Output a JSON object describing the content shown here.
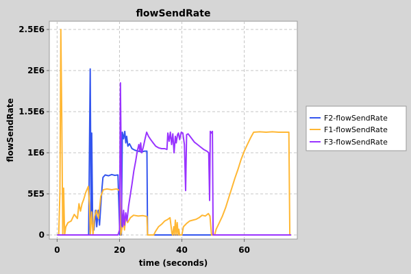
{
  "chart_data": {
    "type": "line",
    "title": "flowSendRate",
    "xlabel": "time (seconds)",
    "ylabel": "flowSendRate",
    "xlim": [
      -2.5,
      77
    ],
    "ylim": [
      -50000,
      2600000
    ],
    "xticks": [
      0,
      20,
      40,
      60
    ],
    "xtick_labels": [
      "0",
      "20",
      "40",
      "60"
    ],
    "yticks": [
      0,
      500000,
      1000000,
      1500000,
      2000000,
      2500000
    ],
    "ytick_labels": [
      "0",
      "5E5",
      "1E6",
      "1.5E6",
      "2E6",
      "2.5E6"
    ],
    "grid": true,
    "legend_position": "right",
    "colors": {
      "page_background": "#d6d6d6",
      "plot_background": "#ffffff",
      "grid": "#c4c4c4",
      "text": "#000000"
    },
    "series": [
      {
        "name": "F2-flowSendRate",
        "color": "#3355ee",
        "points": [
          [
            0,
            0
          ],
          [
            10.1,
            0
          ],
          [
            10.6,
            2020000
          ],
          [
            10.9,
            150000
          ],
          [
            11.1,
            1240000
          ],
          [
            11.4,
            100000
          ],
          [
            11.8,
            60000
          ],
          [
            12.3,
            300000
          ],
          [
            12.7,
            100000
          ],
          [
            13.2,
            300000
          ],
          [
            13.6,
            120000
          ],
          [
            14.1,
            420000
          ],
          [
            14.4,
            580000
          ],
          [
            14.7,
            700000
          ],
          [
            15.4,
            730000
          ],
          [
            16.5,
            720000
          ],
          [
            17.5,
            735000
          ],
          [
            18.5,
            725000
          ],
          [
            19.5,
            730000
          ],
          [
            20.1,
            0
          ],
          [
            20.6,
            0
          ],
          [
            20.9,
            1250000
          ],
          [
            21.3,
            1170000
          ],
          [
            21.7,
            1260000
          ],
          [
            22.0,
            1120000
          ],
          [
            22.3,
            1200000
          ],
          [
            22.7,
            1080000
          ],
          [
            23.2,
            1110000
          ],
          [
            24.0,
            1050000
          ],
          [
            25.0,
            1030000
          ],
          [
            26.0,
            1020000
          ],
          [
            27.0,
            1010000
          ],
          [
            28.0,
            1020000
          ],
          [
            28.8,
            1020000
          ],
          [
            29.0,
            0
          ],
          [
            75,
            0
          ]
        ]
      },
      {
        "name": "F1-flowSendRate",
        "color": "#ffb733",
        "points": [
          [
            0,
            0
          ],
          [
            0.5,
            0
          ],
          [
            0.9,
            520000
          ],
          [
            1.2,
            2500000
          ],
          [
            1.5,
            1400000
          ],
          [
            1.8,
            0
          ],
          [
            2.1,
            570000
          ],
          [
            2.4,
            0
          ],
          [
            2.8,
            100000
          ],
          [
            3.5,
            150000
          ],
          [
            4.5,
            170000
          ],
          [
            5.5,
            250000
          ],
          [
            6.5,
            200000
          ],
          [
            7.0,
            380000
          ],
          [
            7.5,
            290000
          ],
          [
            8.0,
            380000
          ],
          [
            8.5,
            430000
          ],
          [
            9.2,
            520000
          ],
          [
            10.0,
            590000
          ],
          [
            10.4,
            350000
          ],
          [
            10.6,
            0
          ],
          [
            11.1,
            280000
          ],
          [
            11.5,
            0
          ],
          [
            12.0,
            220000
          ],
          [
            12.6,
            300000
          ],
          [
            13.3,
            200000
          ],
          [
            14.0,
            470000
          ],
          [
            14.8,
            550000
          ],
          [
            16.0,
            560000
          ],
          [
            17.5,
            550000
          ],
          [
            19.0,
            560000
          ],
          [
            20.1,
            540000
          ],
          [
            20.4,
            0
          ],
          [
            21.3,
            180000
          ],
          [
            21.6,
            60000
          ],
          [
            22.0,
            220000
          ],
          [
            22.6,
            150000
          ],
          [
            23.5,
            210000
          ],
          [
            24.5,
            240000
          ],
          [
            26.0,
            230000
          ],
          [
            27.5,
            235000
          ],
          [
            28.8,
            225000
          ],
          [
            29.0,
            0
          ],
          [
            31.0,
            0
          ],
          [
            31.5,
            40000
          ],
          [
            32.5,
            100000
          ],
          [
            33.5,
            130000
          ],
          [
            34.5,
            170000
          ],
          [
            35.5,
            190000
          ],
          [
            36.2,
            210000
          ],
          [
            36.8,
            20000
          ],
          [
            37.0,
            0
          ],
          [
            37.4,
            100000
          ],
          [
            37.6,
            0
          ],
          [
            37.9,
            180000
          ],
          [
            38.2,
            0
          ],
          [
            38.5,
            150000
          ],
          [
            38.8,
            0
          ],
          [
            39.0,
            70000
          ],
          [
            39.3,
            0
          ],
          [
            40.0,
            0
          ],
          [
            40.5,
            100000
          ],
          [
            41.5,
            140000
          ],
          [
            42.5,
            170000
          ],
          [
            43.5,
            180000
          ],
          [
            44.5,
            190000
          ],
          [
            45.5,
            210000
          ],
          [
            46.5,
            240000
          ],
          [
            47.5,
            230000
          ],
          [
            48.5,
            260000
          ],
          [
            49.0,
            230000
          ],
          [
            49.5,
            0
          ],
          [
            50.5,
            0
          ],
          [
            51.0,
            70000
          ],
          [
            52.0,
            150000
          ],
          [
            53.0,
            230000
          ],
          [
            54.0,
            330000
          ],
          [
            55.0,
            450000
          ],
          [
            56.0,
            570000
          ],
          [
            57.0,
            690000
          ],
          [
            58.0,
            800000
          ],
          [
            59.0,
            920000
          ],
          [
            60.0,
            1020000
          ],
          [
            61.0,
            1100000
          ],
          [
            62.0,
            1180000
          ],
          [
            63.0,
            1250000
          ],
          [
            65.0,
            1255000
          ],
          [
            67.0,
            1250000
          ],
          [
            69.0,
            1255000
          ],
          [
            71.0,
            1250000
          ],
          [
            73.0,
            1250000
          ],
          [
            74.3,
            1250000
          ],
          [
            74.6,
            0
          ],
          [
            75,
            0
          ]
        ]
      },
      {
        "name": "F3-flowSendRate",
        "color": "#9933ff",
        "points": [
          [
            0,
            0
          ],
          [
            19.5,
            0
          ],
          [
            20.0,
            60000
          ],
          [
            20.3,
            1850000
          ],
          [
            20.7,
            300000
          ],
          [
            21.0,
            100000
          ],
          [
            21.3,
            300000
          ],
          [
            21.6,
            120000
          ],
          [
            22.0,
            270000
          ],
          [
            22.4,
            170000
          ],
          [
            22.9,
            350000
          ],
          [
            23.4,
            470000
          ],
          [
            24.0,
            620000
          ],
          [
            24.6,
            780000
          ],
          [
            25.2,
            900000
          ],
          [
            25.7,
            1020000
          ],
          [
            26.2,
            1100000
          ],
          [
            26.5,
            1020000
          ],
          [
            26.8,
            1120000
          ],
          [
            27.1,
            1000000
          ],
          [
            27.5,
            1050000
          ],
          [
            27.8,
            1100000
          ],
          [
            28.2,
            1170000
          ],
          [
            28.7,
            1250000
          ],
          [
            29.3,
            1200000
          ],
          [
            30.0,
            1160000
          ],
          [
            30.8,
            1120000
          ],
          [
            31.6,
            1080000
          ],
          [
            32.5,
            1060000
          ],
          [
            33.5,
            1050000
          ],
          [
            34.5,
            1050000
          ],
          [
            35.2,
            1040000
          ],
          [
            35.5,
            1240000
          ],
          [
            35.9,
            1140000
          ],
          [
            36.3,
            1250000
          ],
          [
            36.7,
            1100000
          ],
          [
            37.1,
            1230000
          ],
          [
            37.5,
            1000000
          ],
          [
            37.9,
            1200000
          ],
          [
            38.2,
            1120000
          ],
          [
            38.6,
            1220000
          ],
          [
            38.9,
            1240000
          ],
          [
            39.3,
            1160000
          ],
          [
            39.8,
            1250000
          ],
          [
            40.3,
            1240000
          ],
          [
            40.8,
            1100000
          ],
          [
            41.2,
            540000
          ],
          [
            41.5,
            1220000
          ],
          [
            42.0,
            1230000
          ],
          [
            43.0,
            1180000
          ],
          [
            44.0,
            1130000
          ],
          [
            45.0,
            1100000
          ],
          [
            46.0,
            1070000
          ],
          [
            47.0,
            1040000
          ],
          [
            48.0,
            1020000
          ],
          [
            48.6,
            1000000
          ],
          [
            48.9,
            420000
          ],
          [
            49.1,
            1260000
          ],
          [
            49.5,
            1240000
          ],
          [
            49.8,
            1260000
          ],
          [
            50.0,
            0
          ],
          [
            75,
            0
          ]
        ]
      }
    ]
  }
}
